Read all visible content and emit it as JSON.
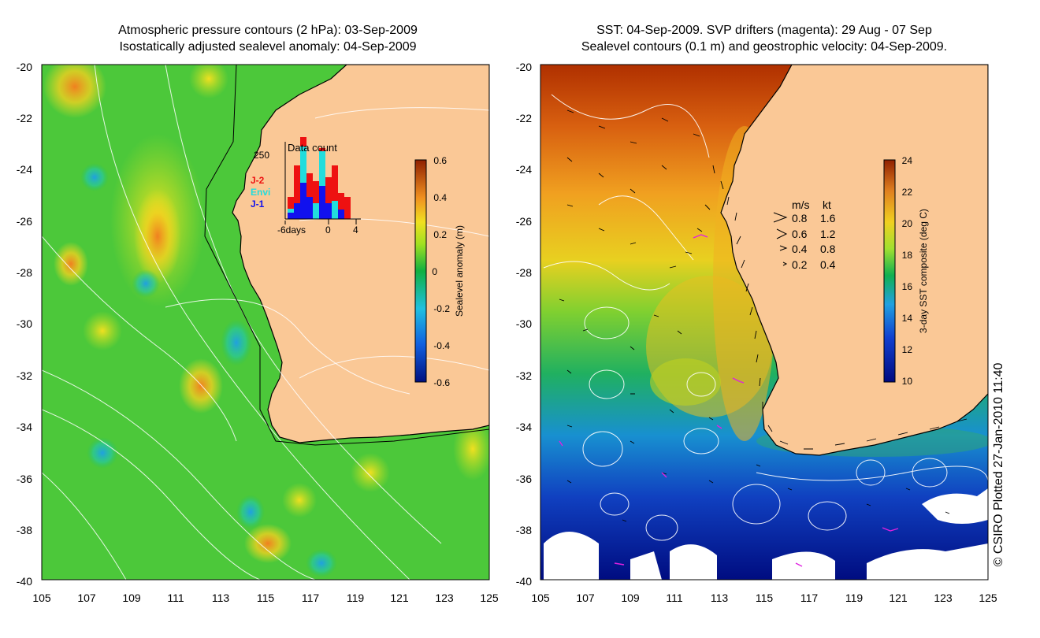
{
  "left_panel": {
    "title_line1": "Atmospheric pressure contours (2 hPa): 03-Sep-2009",
    "title_line2": "Isostatically adjusted sealevel anomaly: 04-Sep-2009",
    "y_ticks": [
      "-20",
      "-22",
      "-24",
      "-26",
      "-28",
      "-30",
      "-32",
      "-34",
      "-36",
      "-38",
      "-40"
    ],
    "x_ticks": [
      "105",
      "107",
      "109",
      "111",
      "113",
      "115",
      "117",
      "119",
      "121",
      "123",
      "125"
    ],
    "colorbar": {
      "label": "Sealevel anomaly (m)",
      "ticks": [
        "0.6",
        "0.4",
        "0.2",
        "0",
        "-0.2",
        "-0.4",
        "-0.6"
      ]
    },
    "inset": {
      "title": "Data count",
      "y_label": "250",
      "x_labels": [
        "-6days",
        "0",
        "4"
      ],
      "legend": [
        "J-2",
        "Envi",
        "J-1"
      ],
      "colors": {
        "J-2": "#ee1111",
        "Envi": "#22dddd",
        "J-1": "#1111ee"
      }
    }
  },
  "right_panel": {
    "title_line1": "SST: 04-Sep-2009. SVP drifters (magenta): 29 Aug - 07 Sep",
    "title_line2": "Sealevel contours (0.1 m) and geostrophic velocity: 04-Sep-2009.",
    "y_ticks": [
      "-20",
      "-22",
      "-24",
      "-26",
      "-28",
      "-30",
      "-32",
      "-34",
      "-36",
      "-38",
      "-40"
    ],
    "x_ticks": [
      "105",
      "107",
      "109",
      "111",
      "113",
      "115",
      "117",
      "119",
      "121",
      "123",
      "125"
    ],
    "colorbar": {
      "label": "3-day SST composite (deg C)",
      "ticks": [
        "24",
        "22",
        "20",
        "18",
        "16",
        "14",
        "12",
        "10"
      ]
    },
    "velocity_legend": {
      "header_ms": "m/s",
      "header_kt": "kt",
      "rows": [
        {
          "ms": "0.8",
          "kt": "1.6"
        },
        {
          "ms": "0.6",
          "kt": "1.2"
        },
        {
          "ms": "0.4",
          "kt": "0.8"
        },
        {
          "ms": "0.2",
          "kt": "0.4"
        }
      ]
    }
  },
  "credit": "© CSIRO Plotted 27-Jan-2010 11:40",
  "colors": {
    "land": "#fac896",
    "coast": "#000000",
    "contour": "#ffffff"
  }
}
